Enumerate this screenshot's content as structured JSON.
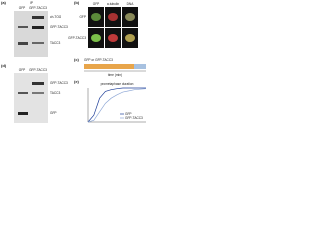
{
  "panel_a": {
    "label": "(a)",
    "header": "IP",
    "lanes": [
      "GFP",
      "GFP-TACC3"
    ],
    "band_labels": [
      "ch-TOG",
      "GFP-TACC3",
      "TACC3"
    ]
  },
  "panel_b": {
    "label": "(b)",
    "columns": [
      "GFP",
      "α-tubulin",
      "DNA"
    ],
    "rows": [
      "GFP",
      "GFP-TACC3"
    ]
  },
  "panel_c": {
    "label": "(c)",
    "text": "GFP or GFP-TACC3",
    "axis_label": "time (min)"
  },
  "panel_d": {
    "label": "(d)",
    "lanes": [
      "GFP",
      "GFP-TACC3"
    ],
    "band_labels": [
      "GFP-TACC3",
      "TACC3",
      "GFP"
    ]
  },
  "panel_e": {
    "label": "(e)",
    "chart_data": {
      "type": "line",
      "title": "prometaphase duration",
      "x": [
        0,
        10,
        20,
        30,
        40,
        50,
        60,
        80,
        100
      ],
      "xlim": [
        0,
        100
      ],
      "ylim": [
        0,
        100
      ],
      "series": [
        {
          "name": "GFP",
          "color": "#1f3f99",
          "values": [
            0,
            20,
            70,
            90,
            95,
            98,
            100,
            100,
            100
          ]
        },
        {
          "name": "GFP-TACC3",
          "color": "#8fa8d6",
          "values": [
            0,
            5,
            30,
            55,
            70,
            80,
            88,
            95,
            98
          ]
        }
      ]
    }
  }
}
